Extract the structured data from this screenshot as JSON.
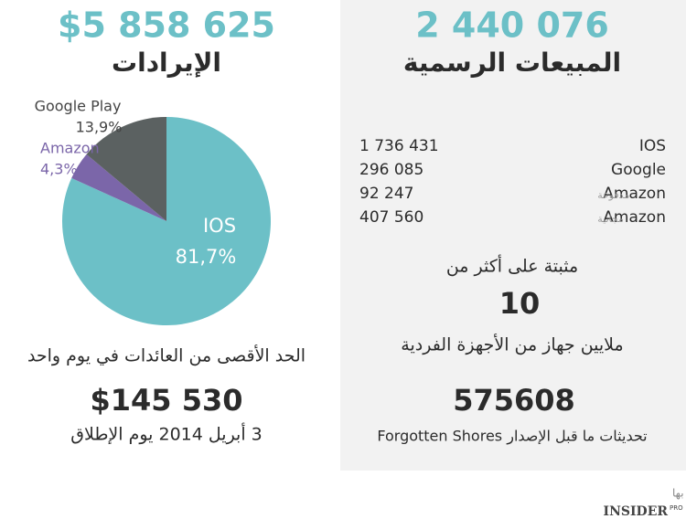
{
  "chart_data": {
    "type": "pie",
    "categories": [
      "IOS",
      "Amazon",
      "Google Play"
    ],
    "values": [
      81.7,
      4.3,
      13.9
    ],
    "value_labels": [
      "81,7%",
      "4,3%",
      "13,9%"
    ],
    "colors": [
      "#6cc0c7",
      "#7b66a9",
      "#5b6161"
    ]
  },
  "left_panel": {
    "total": "$5 858 625",
    "title": "الإيرادات",
    "caption": "الحد الأقصى من العائدات في يوم واحد",
    "max_day": "$145 530",
    "date": "3 أبريل 2014 يوم الإطلاق"
  },
  "right_panel": {
    "total": "2 440 076",
    "title": "المبيعات الرسمية",
    "rows": [
      {
        "number": "1 736 431",
        "label": "IOS"
      },
      {
        "number": "296 085",
        "label": "Google"
      },
      {
        "number": "92 247",
        "label": "Amazon",
        "note": "مدفوعة"
      },
      {
        "number": "407 560",
        "label": "Amazon",
        "note": "مجانية"
      }
    ],
    "installed_intro": "مثبتة على أكثر من",
    "installed_value": "10",
    "installed_caption": "ملايين جهاز من الأجهزة الفردية",
    "updates_value": "575608",
    "updates_caption": "تحديثات ما قبل الإصدار Forgotten Shores"
  },
  "footer": {
    "note": "بما في ذلك عدة أجهزة متعددة عند الشراء لمرة واحدة، أمكانية الوصول للأسرة و التثبيتات الغير مصرح بها",
    "logo": "INSIDER",
    "logo_sup": "PRO"
  }
}
